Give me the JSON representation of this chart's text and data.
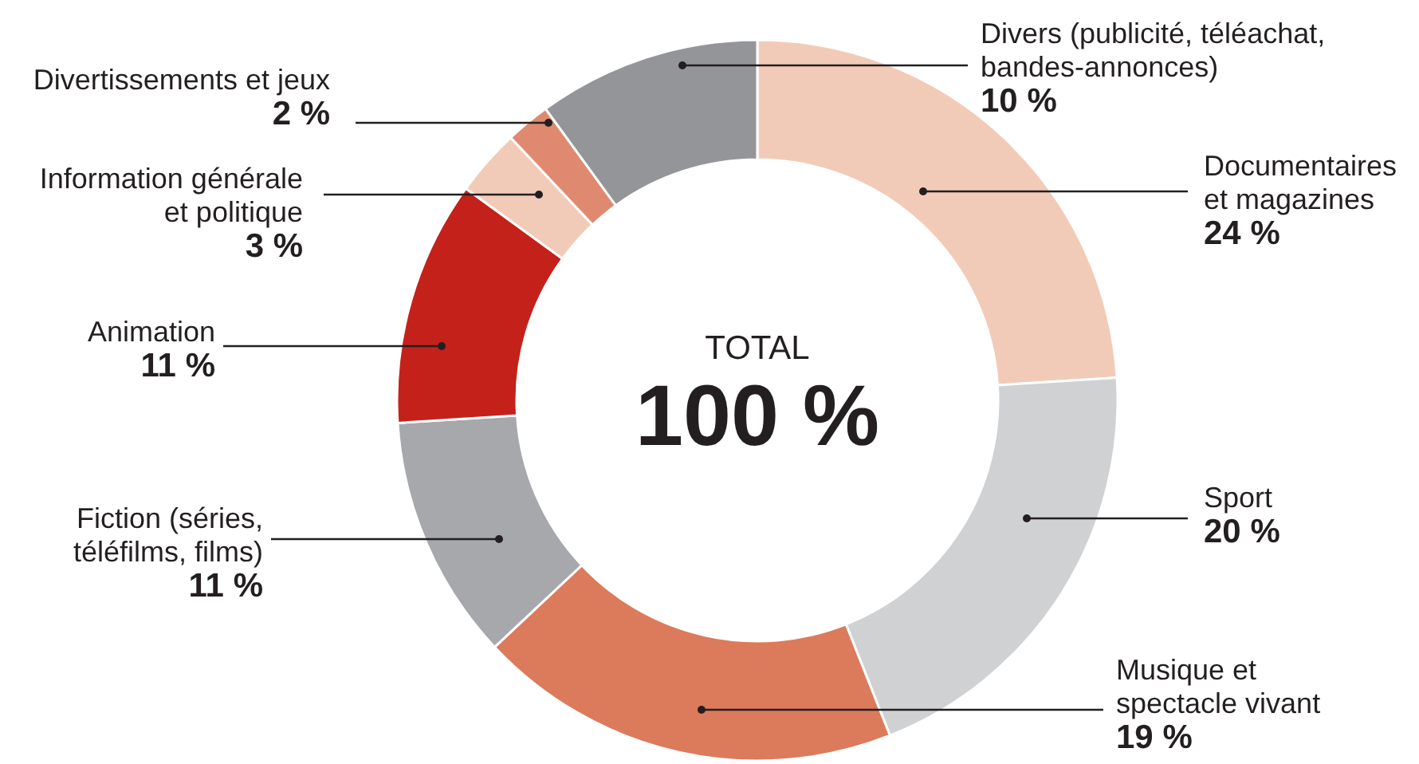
{
  "chart_data": {
    "type": "donut",
    "title": "TOTAL",
    "subtitle": "100 %",
    "categories": [
      "Documentaires\net magazines",
      "Sport",
      "Musique et\nspectacle vivant",
      "Fiction (séries,\ntéléfilms, films)",
      "Animation",
      "Information générale\net politique",
      "Divertissements et jeux",
      "Divers (publicité, téléachat,\nbandes-annonces)"
    ],
    "values": [
      24,
      20,
      19,
      11,
      11,
      3,
      2,
      10
    ],
    "value_labels": [
      "24 %",
      "20 %",
      "19 %",
      "11 %",
      "11 %",
      "3 %",
      "2 %",
      "10 %"
    ],
    "colors": [
      "#f2cbb8",
      "#d0d1d3",
      "#dc7a5c",
      "#a7a8ab",
      "#c4211b",
      "#f2cbb8",
      "#df8a70",
      "#949598"
    ]
  }
}
